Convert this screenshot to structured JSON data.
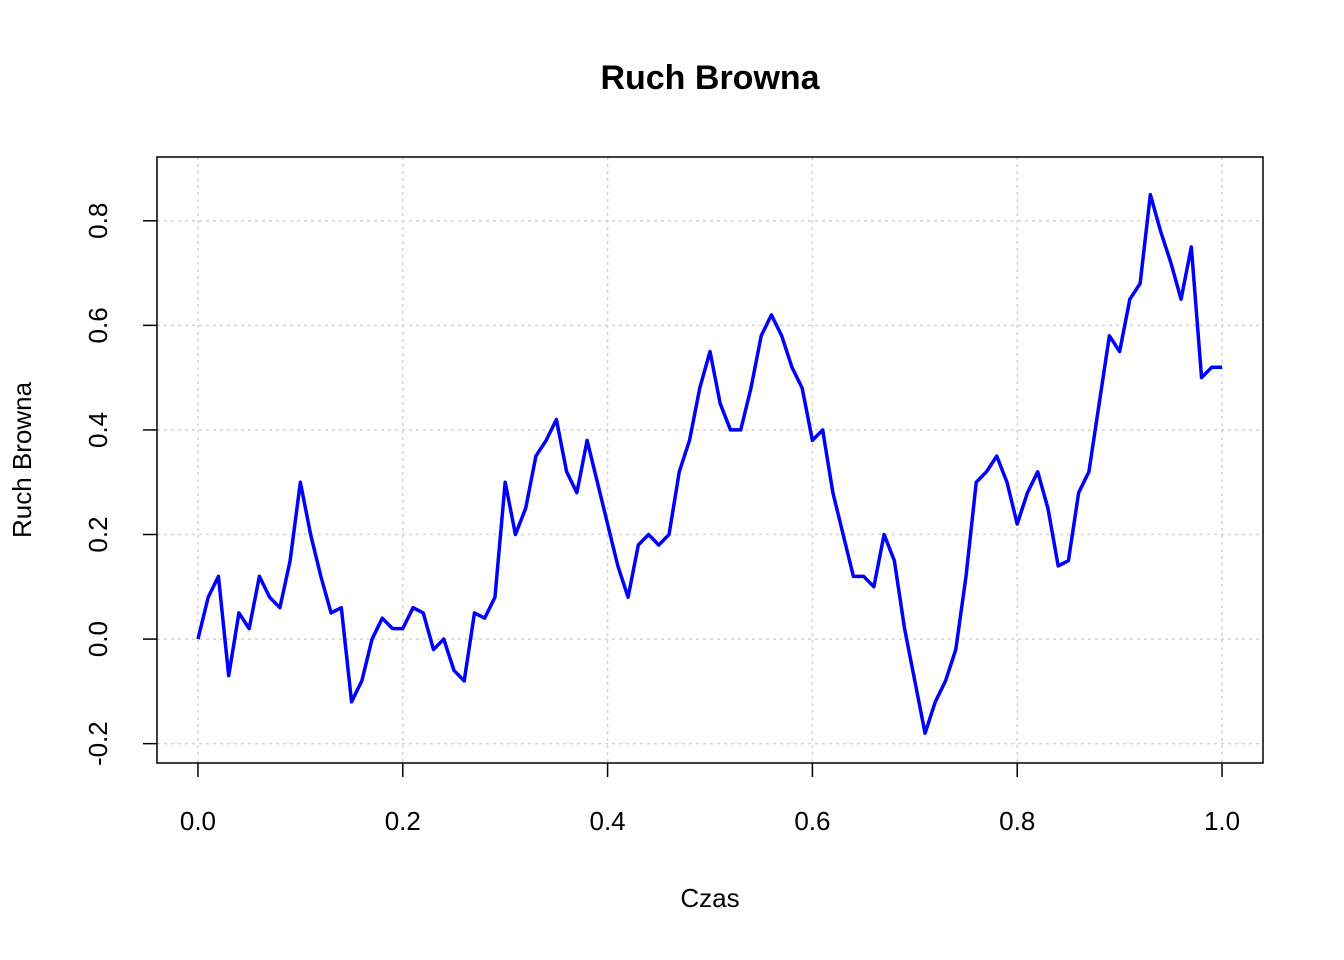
{
  "chart_data": {
    "type": "line",
    "title": "Ruch Browna",
    "x_label": "Czas",
    "y_label": "Ruch Browna",
    "x": [
      0,
      0.01,
      0.02,
      0.03,
      0.04,
      0.05,
      0.06,
      0.07,
      0.08,
      0.09,
      0.1,
      0.11,
      0.12,
      0.13,
      0.14,
      0.15,
      0.16,
      0.17,
      0.18,
      0.19,
      0.2,
      0.21,
      0.22,
      0.23,
      0.24,
      0.25,
      0.26,
      0.27,
      0.28,
      0.29,
      0.3,
      0.31,
      0.32,
      0.33,
      0.34,
      0.35,
      0.36,
      0.37,
      0.38,
      0.39,
      0.4,
      0.41,
      0.42,
      0.43,
      0.44,
      0.45,
      0.46,
      0.47,
      0.48,
      0.49,
      0.5,
      0.51,
      0.52,
      0.53,
      0.54,
      0.55,
      0.56,
      0.57,
      0.58,
      0.59,
      0.6,
      0.61,
      0.62,
      0.63,
      0.64,
      0.65,
      0.66,
      0.67,
      0.68,
      0.69,
      0.7,
      0.71,
      0.72,
      0.73,
      0.74,
      0.75,
      0.76,
      0.77,
      0.78,
      0.79,
      0.8,
      0.81,
      0.82,
      0.83,
      0.84,
      0.85,
      0.86,
      0.87,
      0.88,
      0.89,
      0.9,
      0.91,
      0.92,
      0.93,
      0.94,
      0.95,
      0.96,
      0.97,
      0.98,
      0.99,
      1
    ],
    "series": [
      {
        "name": "Ruch Browna",
        "color": "#0000ff",
        "values": [
          0,
          0.08,
          0.12,
          -0.07,
          0.05,
          0.02,
          0.12,
          0.08,
          0.06,
          0.15,
          0.3,
          0.2,
          0.12,
          0.05,
          0.06,
          -0.12,
          -0.08,
          0,
          0.04,
          0.02,
          0.02,
          0.06,
          0.05,
          -0.02,
          0,
          -0.06,
          -0.08,
          0.05,
          0.04,
          0.08,
          0.3,
          0.2,
          0.25,
          0.35,
          0.38,
          0.42,
          0.32,
          0.28,
          0.38,
          0.3,
          0.22,
          0.14,
          0.08,
          0.18,
          0.2,
          0.18,
          0.2,
          0.32,
          0.38,
          0.48,
          0.55,
          0.45,
          0.4,
          0.4,
          0.48,
          0.58,
          0.62,
          0.58,
          0.52,
          0.48,
          0.38,
          0.4,
          0.28,
          0.2,
          0.12,
          0.12,
          0.1,
          0.2,
          0.15,
          0.02,
          -0.08,
          -0.18,
          -0.12,
          -0.08,
          -0.02,
          0.12,
          0.3,
          0.32,
          0.35,
          0.3,
          0.22,
          0.28,
          0.32,
          0.25,
          0.14,
          0.15,
          0.28,
          0.32,
          0.45,
          0.58,
          0.55,
          0.65,
          0.68,
          0.85,
          0.78,
          0.72,
          0.65,
          0.75,
          0.5,
          0.52,
          0.52
        ]
      }
    ],
    "xlim": [
      -0.04,
      1.04
    ],
    "ylim": [
      -0.237,
      0.922
    ],
    "xticks": [
      {
        "value": 0,
        "label": "0.0"
      },
      0.2,
      0.4,
      0.6,
      0.8,
      {
        "value": 1,
        "label": "1.0"
      }
    ],
    "yticks": [
      -0.2,
      {
        "value": 0,
        "label": "0.0"
      },
      0.2,
      0.4,
      0.6,
      0.8
    ],
    "grid": true
  }
}
